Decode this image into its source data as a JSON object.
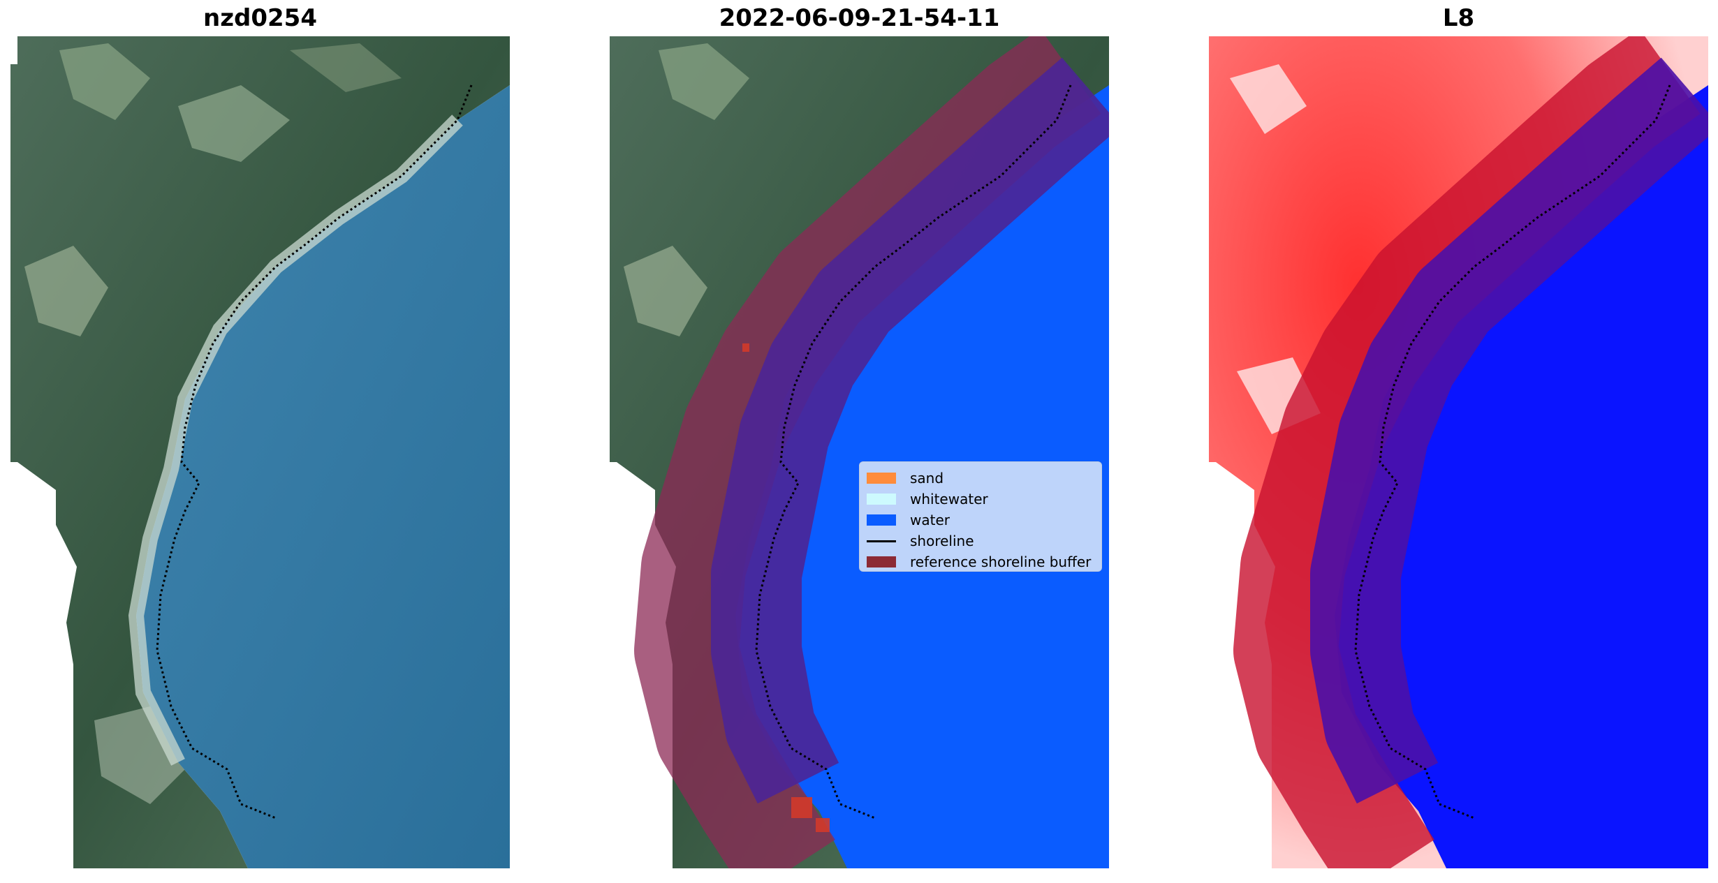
{
  "panels": [
    {
      "title": "nzd0254"
    },
    {
      "title": "2022-06-09-21-54-11"
    },
    {
      "title": "L8"
    }
  ],
  "legend": {
    "items": [
      {
        "label": "sand",
        "color": "#ff8c3b",
        "kind": "patch"
      },
      {
        "label": "whitewater",
        "color": "#cdfafe",
        "kind": "patch"
      },
      {
        "label": "water",
        "color": "#0a5cff",
        "kind": "patch"
      },
      {
        "label": "shoreline",
        "color": "#000000",
        "kind": "line"
      },
      {
        "label": "reference shoreline buffer",
        "color": "#8c2a35",
        "kind": "patch"
      }
    ]
  },
  "colors": {
    "land_dark": "#3d5e4c",
    "land_light": "#7f9a7a",
    "sea": "#2f7aa6",
    "surf": "#c7d7cf",
    "classified_water": "#0a5cff",
    "buffer_overlay": "#8c2a55",
    "heat_land": "#ff1f1f",
    "heat_sea": "#0a14ff"
  }
}
